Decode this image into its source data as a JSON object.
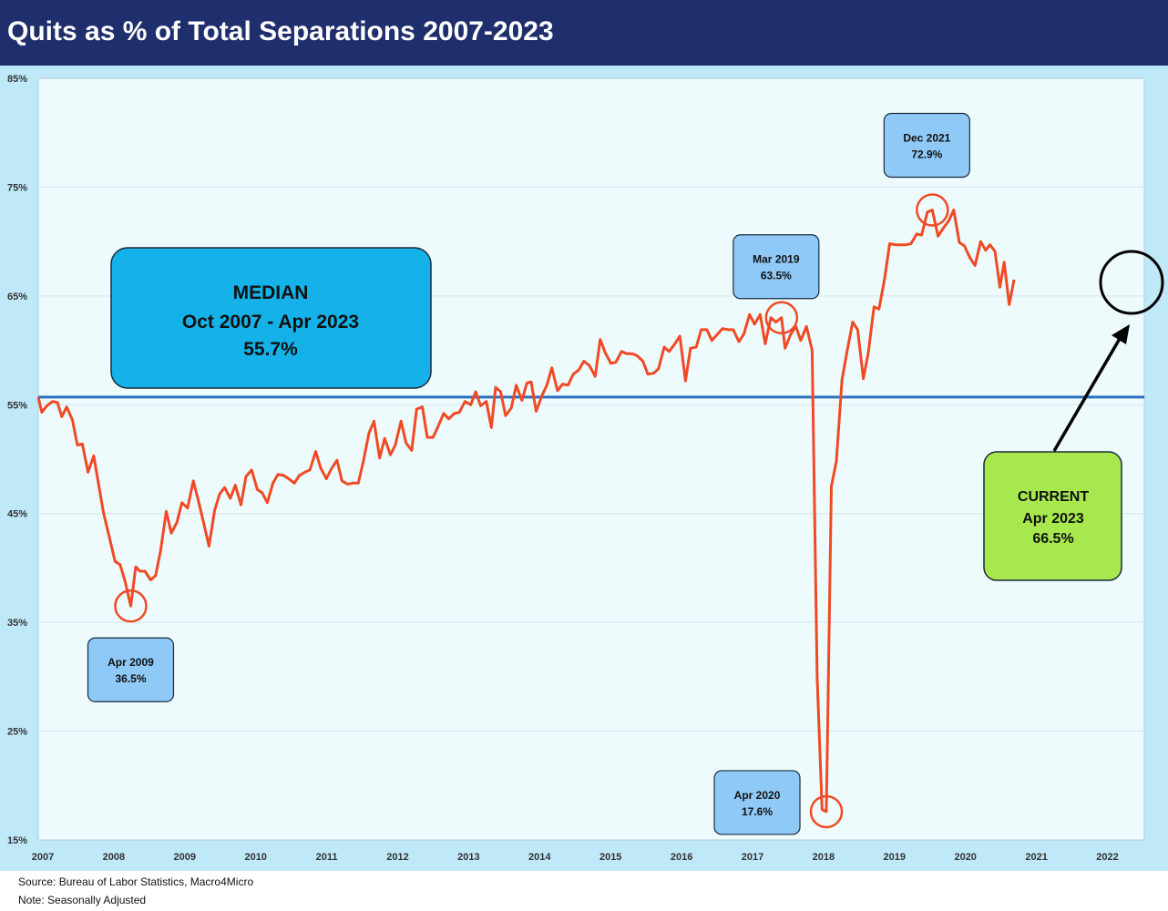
{
  "title": "Quits as % of Total Separations 2007-2023",
  "footer": {
    "source": "Source: Bureau of Labor Statistics, Macro4Micro",
    "note": "Note: Seasonally Adjusted"
  },
  "colors": {
    "title_bar": "#1f2e6c",
    "chart_background": "#bfe9f9",
    "plot_background": "#eefbfd",
    "series_line": "#f04a25",
    "median_line": "#2a6fbe",
    "callout_box": "#8ec9f7",
    "median_box": "#14b2e8",
    "current_box": "#a6e84e",
    "highlight_circle": "#f04a25",
    "current_circle": "#000000"
  },
  "median_box": {
    "line1": "MEDIAN",
    "line2": "Oct 2007 - Apr 2023",
    "line3": "55.7%"
  },
  "current_box": {
    "line1": "CURRENT",
    "line2": "Apr 2023",
    "line3": "66.5%"
  },
  "chart_data": {
    "type": "line",
    "title": "Quits as % of Total Separations 2007-2023",
    "xlabel": "",
    "ylabel": "",
    "ylim": [
      15,
      85
    ],
    "xlim": [
      2007,
      2022.55
    ],
    "yticks": [
      "15%",
      "25%",
      "35%",
      "45%",
      "55%",
      "65%",
      "75%",
      "85%"
    ],
    "ytick_values": [
      15,
      25,
      35,
      45,
      55,
      65,
      75,
      85
    ],
    "xticks": [
      "2007",
      "2008",
      "2009",
      "2010",
      "2011",
      "2012",
      "2013",
      "2014",
      "2015",
      "2016",
      "2017",
      "2018",
      "2019",
      "2020",
      "2021",
      "2022"
    ],
    "grid": true,
    "median": 55.7,
    "series": [
      {
        "points": [
          [
            2007.0,
            55.7
          ],
          [
            2007.05,
            54.3
          ],
          [
            2007.12,
            54.9
          ],
          [
            2007.2,
            55.3
          ],
          [
            2007.27,
            55.2
          ],
          [
            2007.33,
            53.9
          ],
          [
            2007.4,
            54.8
          ],
          [
            2007.48,
            53.6
          ],
          [
            2007.55,
            51.3
          ],
          [
            2007.62,
            51.4
          ],
          [
            2007.7,
            48.8
          ],
          [
            2007.78,
            50.3
          ],
          [
            2007.85,
            47.6
          ],
          [
            2007.92,
            45.0
          ],
          [
            2008.0,
            42.8
          ],
          [
            2008.08,
            40.6
          ],
          [
            2008.15,
            40.3
          ],
          [
            2008.22,
            38.8
          ],
          [
            2008.3,
            36.5
          ],
          [
            2008.37,
            40.1
          ],
          [
            2008.43,
            39.7
          ],
          [
            2008.5,
            39.7
          ],
          [
            2008.58,
            38.9
          ],
          [
            2008.65,
            39.3
          ],
          [
            2008.72,
            41.6
          ],
          [
            2008.8,
            45.2
          ],
          [
            2008.87,
            43.2
          ],
          [
            2008.95,
            44.2
          ],
          [
            2009.02,
            46.0
          ],
          [
            2009.1,
            45.5
          ],
          [
            2009.18,
            48.0
          ],
          [
            2009.25,
            46.2
          ],
          [
            2009.32,
            44.3
          ],
          [
            2009.4,
            42.0
          ],
          [
            2009.48,
            45.3
          ],
          [
            2009.55,
            46.8
          ],
          [
            2009.62,
            47.4
          ],
          [
            2009.7,
            46.4
          ],
          [
            2009.77,
            47.6
          ],
          [
            2009.85,
            45.8
          ],
          [
            2009.92,
            48.4
          ],
          [
            2010.0,
            49.0
          ],
          [
            2010.08,
            47.2
          ],
          [
            2010.15,
            46.9
          ],
          [
            2010.22,
            46.0
          ],
          [
            2010.3,
            47.8
          ],
          [
            2010.37,
            48.6
          ],
          [
            2010.45,
            48.5
          ],
          [
            2010.52,
            48.2
          ],
          [
            2010.6,
            47.8
          ],
          [
            2010.67,
            48.5
          ],
          [
            2010.75,
            48.8
          ],
          [
            2010.82,
            49.0
          ],
          [
            2010.9,
            50.7
          ],
          [
            2010.97,
            49.2
          ],
          [
            2011.05,
            48.2
          ],
          [
            2011.12,
            49.1
          ],
          [
            2011.2,
            49.9
          ],
          [
            2011.27,
            48.0
          ],
          [
            2011.35,
            47.7
          ],
          [
            2011.42,
            47.8
          ],
          [
            2011.5,
            47.8
          ],
          [
            2011.57,
            49.8
          ],
          [
            2011.65,
            52.4
          ],
          [
            2011.72,
            53.5
          ],
          [
            2011.8,
            50.1
          ],
          [
            2011.87,
            51.9
          ],
          [
            2011.95,
            50.4
          ],
          [
            2012.02,
            51.3
          ],
          [
            2012.1,
            53.5
          ],
          [
            2012.17,
            51.5
          ],
          [
            2012.25,
            50.8
          ],
          [
            2012.32,
            54.6
          ],
          [
            2012.4,
            54.8
          ],
          [
            2012.47,
            52.0
          ],
          [
            2012.55,
            52.0
          ],
          [
            2012.62,
            53.0
          ],
          [
            2012.7,
            54.2
          ],
          [
            2012.77,
            53.7
          ],
          [
            2012.85,
            54.2
          ],
          [
            2012.92,
            54.3
          ],
          [
            2013.0,
            55.3
          ],
          [
            2013.08,
            55.0
          ],
          [
            2013.15,
            56.2
          ],
          [
            2013.22,
            54.9
          ],
          [
            2013.3,
            55.3
          ],
          [
            2013.37,
            52.9
          ],
          [
            2013.43,
            56.6
          ],
          [
            2013.5,
            56.2
          ],
          [
            2013.57,
            54.0
          ],
          [
            2013.65,
            54.7
          ],
          [
            2013.72,
            56.8
          ],
          [
            2013.8,
            55.4
          ],
          [
            2013.87,
            57.0
          ],
          [
            2013.93,
            57.1
          ],
          [
            2014.0,
            54.4
          ],
          [
            2014.08,
            55.8
          ],
          [
            2014.15,
            56.8
          ],
          [
            2014.22,
            58.4
          ],
          [
            2014.3,
            56.3
          ],
          [
            2014.37,
            56.9
          ],
          [
            2014.45,
            56.8
          ],
          [
            2014.52,
            57.8
          ],
          [
            2014.6,
            58.2
          ],
          [
            2014.67,
            59.0
          ],
          [
            2014.75,
            58.6
          ],
          [
            2014.83,
            57.6
          ],
          [
            2014.9,
            61.0
          ],
          [
            2014.97,
            59.8
          ],
          [
            2015.05,
            58.8
          ],
          [
            2015.12,
            58.9
          ],
          [
            2015.2,
            59.9
          ],
          [
            2015.27,
            59.7
          ],
          [
            2015.35,
            59.7
          ],
          [
            2015.42,
            59.5
          ],
          [
            2015.5,
            59.0
          ],
          [
            2015.57,
            57.8
          ],
          [
            2015.65,
            57.9
          ],
          [
            2015.72,
            58.3
          ],
          [
            2015.8,
            60.3
          ],
          [
            2015.87,
            59.9
          ],
          [
            2015.95,
            60.6
          ],
          [
            2016.02,
            61.3
          ],
          [
            2016.1,
            57.2
          ],
          [
            2016.17,
            60.2
          ],
          [
            2016.25,
            60.3
          ],
          [
            2016.32,
            61.9
          ],
          [
            2016.4,
            61.9
          ],
          [
            2016.47,
            60.9
          ],
          [
            2016.55,
            61.5
          ],
          [
            2016.62,
            62.0
          ],
          [
            2016.7,
            61.9
          ],
          [
            2016.77,
            61.9
          ],
          [
            2016.85,
            60.8
          ],
          [
            2016.92,
            61.5
          ],
          [
            2017.0,
            63.3
          ],
          [
            2017.07,
            62.4
          ],
          [
            2017.15,
            63.3
          ],
          [
            2017.22,
            60.6
          ],
          [
            2017.3,
            63.0
          ],
          [
            2017.37,
            62.6
          ],
          [
            2017.45,
            63.0
          ],
          [
            2017.5,
            60.2
          ],
          [
            2017.58,
            61.5
          ],
          [
            2017.65,
            62.2
          ],
          [
            2017.72,
            60.9
          ],
          [
            2017.8,
            62.2
          ],
          [
            2017.88,
            60.0
          ],
          [
            2017.95,
            30.0
          ],
          [
            2018.02,
            17.8
          ],
          [
            2018.08,
            17.6
          ],
          [
            2018.15,
            47.5
          ],
          [
            2018.22,
            49.8
          ],
          [
            2018.3,
            57.3
          ],
          [
            2018.37,
            59.9
          ],
          [
            2018.45,
            62.6
          ],
          [
            2018.52,
            61.9
          ],
          [
            2018.6,
            57.4
          ],
          [
            2018.67,
            59.8
          ],
          [
            2018.75,
            64.0
          ],
          [
            2018.82,
            63.8
          ],
          [
            2018.9,
            66.6
          ],
          [
            2018.97,
            69.8
          ],
          [
            2019.05,
            69.7
          ],
          [
            2019.12,
            69.7
          ],
          [
            2019.2,
            69.7
          ],
          [
            2019.27,
            69.8
          ],
          [
            2019.35,
            70.7
          ],
          [
            2019.42,
            70.6
          ],
          [
            2019.5,
            72.7
          ],
          [
            2019.57,
            72.9
          ],
          [
            2019.65,
            70.5
          ],
          [
            2019.72,
            71.2
          ],
          [
            2019.8,
            71.9
          ],
          [
            2019.87,
            72.9
          ],
          [
            2019.95,
            69.9
          ],
          [
            2020.02,
            69.6
          ],
          [
            2020.1,
            68.5
          ],
          [
            2020.17,
            67.8
          ],
          [
            2020.25,
            70.0
          ],
          [
            2020.32,
            69.2
          ],
          [
            2020.38,
            69.7
          ],
          [
            2020.45,
            69.1
          ],
          [
            2020.52,
            65.8
          ],
          [
            2020.58,
            68.1
          ],
          [
            2020.65,
            64.2
          ],
          [
            2020.72,
            66.5
          ]
        ]
      }
    ],
    "annotations": [
      {
        "label": "Apr 2009",
        "value": "36.5%"
      },
      {
        "label": "Mar 2019",
        "value": "63.5%"
      },
      {
        "label": "Apr 2020",
        "value": "17.6%"
      },
      {
        "label": "Dec 2021",
        "value": "72.9%"
      }
    ]
  }
}
